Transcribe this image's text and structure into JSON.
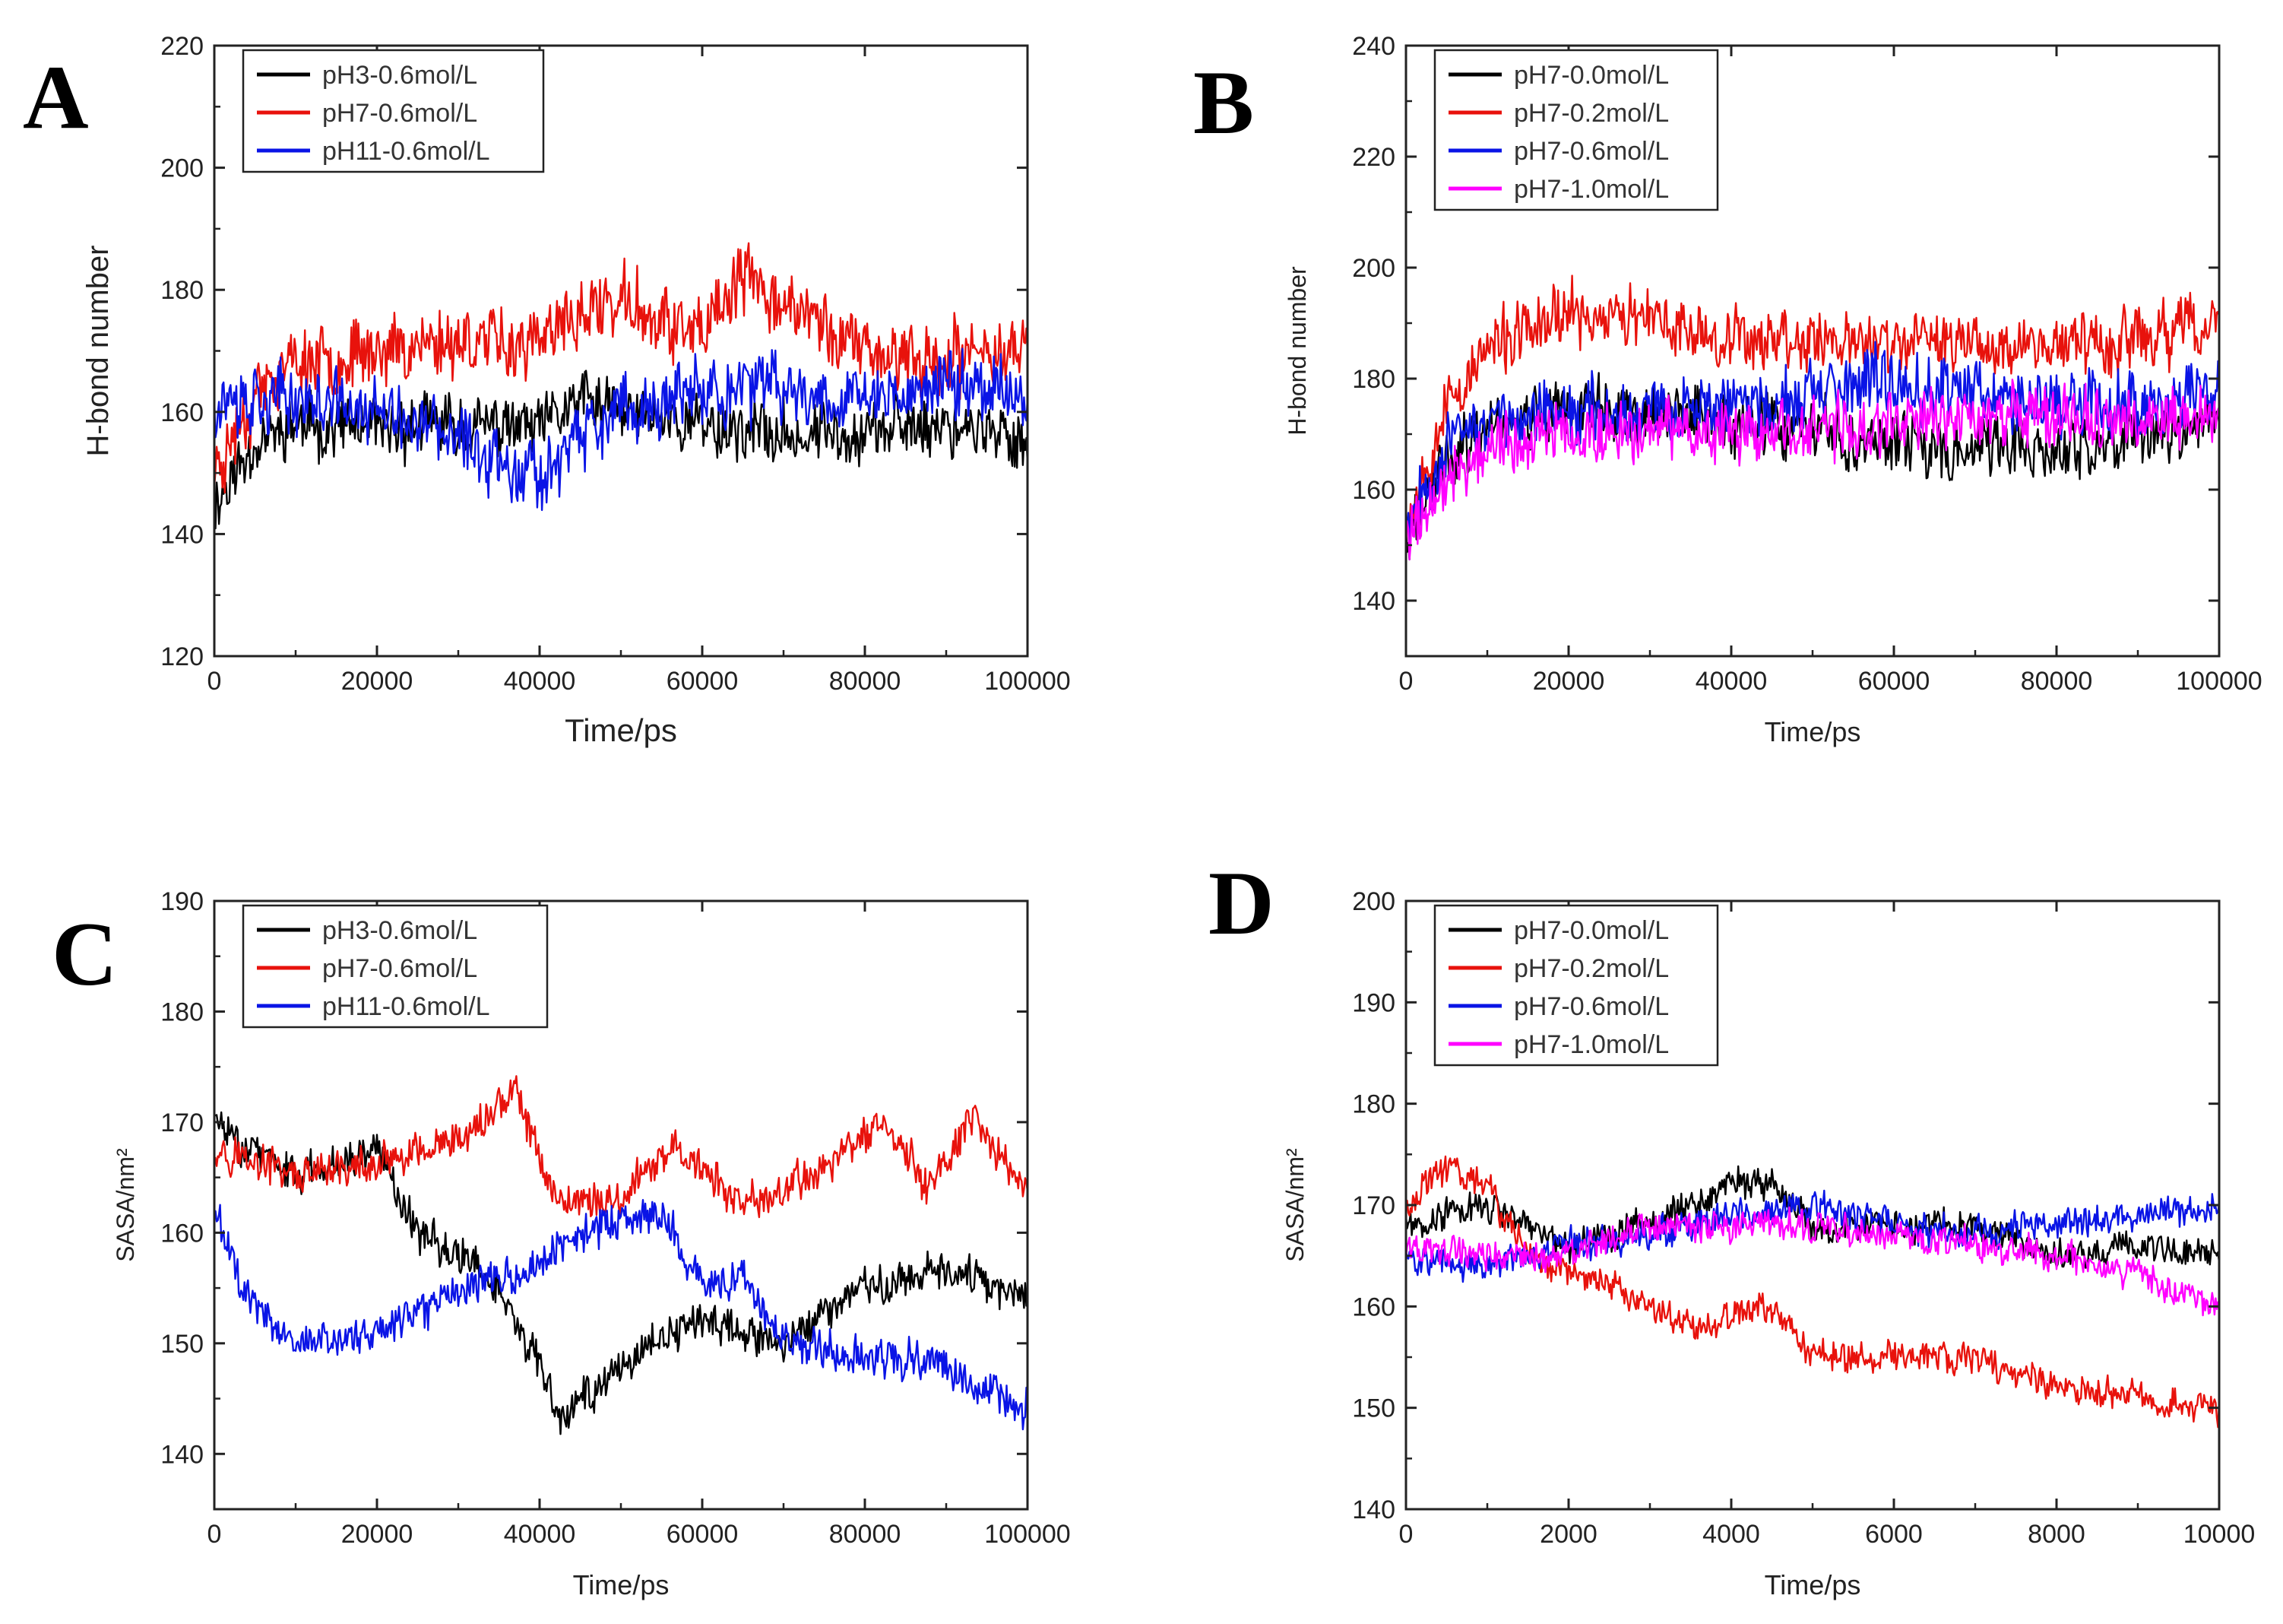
{
  "chart_data": [
    {
      "id": "A",
      "panel_label": "A",
      "type": "line",
      "title": "",
      "xlabel": "Time/ps",
      "ylabel": "H-bond number",
      "xlim": [
        0,
        100000
      ],
      "ylim": [
        120,
        220
      ],
      "xticks": [
        0,
        20000,
        40000,
        60000,
        80000,
        100000
      ],
      "xtick_labels": [
        "0",
        "20000",
        "40000",
        "60000",
        "80000",
        "100000"
      ],
      "yticks": [
        120,
        140,
        160,
        180,
        200,
        220
      ],
      "ytick_labels": [
        "120",
        "140",
        "160",
        "180",
        "200",
        "220"
      ],
      "legend_position": "top-left",
      "series": [
        {
          "name": "pH3-0.6mol/L",
          "color": "#000000",
          "noise": 7,
          "seed": 11,
          "x": [
            0,
            5000,
            10000,
            20000,
            30000,
            40000,
            45000,
            50000,
            60000,
            70000,
            80000,
            90000,
            100000
          ],
          "values": [
            145,
            155,
            158,
            157,
            158,
            157,
            162,
            160,
            158,
            156,
            157,
            158,
            155
          ]
        },
        {
          "name": "pH7-0.6mol/L",
          "color": "#e8120c",
          "noise": 8,
          "seed": 23,
          "x": [
            0,
            5000,
            10000,
            20000,
            30000,
            40000,
            45000,
            50000,
            60000,
            65000,
            70000,
            80000,
            90000,
            100000
          ],
          "values": [
            150,
            163,
            168,
            170,
            172,
            171,
            176,
            178,
            172,
            182,
            178,
            170,
            168,
            172
          ]
        },
        {
          "name": "pH11-0.6mol/L",
          "color": "#0a14e6",
          "noise": 8,
          "seed": 37,
          "x": [
            0,
            10000,
            20000,
            30000,
            40000,
            45000,
            50000,
            60000,
            70000,
            80000,
            90000,
            100000
          ],
          "values": [
            162,
            162,
            160,
            155,
            150,
            155,
            160,
            163,
            164,
            162,
            165,
            163
          ]
        }
      ]
    },
    {
      "id": "B",
      "panel_label": "B",
      "type": "line",
      "title": "",
      "xlabel": "Time/ps",
      "ylabel": "H-bond number",
      "xlim": [
        0,
        100000
      ],
      "ylim": [
        130,
        240
      ],
      "xticks": [
        0,
        20000,
        40000,
        60000,
        80000,
        100000
      ],
      "xtick_labels": [
        "0",
        "20000",
        "40000",
        "60000",
        "80000",
        "100000"
      ],
      "yticks": [
        140,
        160,
        180,
        200,
        220,
        240
      ],
      "ytick_labels": [
        "140",
        "160",
        "180",
        "200",
        "220",
        "240"
      ],
      "legend_position": "top-left",
      "series": [
        {
          "name": "pH7-0.0mol/L",
          "color": "#000000",
          "noise": 8,
          "seed": 41,
          "x": [
            0,
            5000,
            10000,
            20000,
            30000,
            40000,
            50000,
            60000,
            70000,
            80000,
            90000,
            100000
          ],
          "values": [
            150,
            165,
            172,
            175,
            174,
            172,
            170,
            168,
            168,
            166,
            170,
            172
          ]
        },
        {
          "name": "pH7-0.2mol/L",
          "color": "#e8120c",
          "noise": 8,
          "seed": 53,
          "x": [
            0,
            5000,
            10000,
            20000,
            30000,
            40000,
            50000,
            60000,
            70000,
            80000,
            90000,
            100000
          ],
          "values": [
            155,
            175,
            185,
            192,
            190,
            188,
            187,
            186,
            187,
            186,
            187,
            190
          ]
        },
        {
          "name": "pH7-0.6mol/L",
          "color": "#0a14e6",
          "noise": 8,
          "seed": 67,
          "x": [
            0,
            5000,
            10000,
            20000,
            30000,
            40000,
            50000,
            60000,
            70000,
            80000,
            90000,
            100000
          ],
          "values": [
            155,
            168,
            172,
            174,
            175,
            175,
            176,
            180,
            178,
            176,
            176,
            178
          ]
        },
        {
          "name": "pH7-1.0mol/L",
          "color": "#ff00ff",
          "noise": 8,
          "seed": 79,
          "x": [
            0,
            5000,
            10000,
            20000,
            30000,
            40000,
            50000,
            60000,
            70000,
            80000,
            90000,
            100000
          ],
          "values": [
            152,
            162,
            168,
            170,
            171,
            170,
            170,
            172,
            173,
            173,
            172,
            173
          ]
        }
      ]
    },
    {
      "id": "C",
      "panel_label": "C",
      "type": "line",
      "title": "",
      "xlabel": "Time/ps",
      "ylabel": "SASA/nm²",
      "xlim": [
        0,
        100000
      ],
      "ylim": [
        135,
        190
      ],
      "xticks": [
        0,
        20000,
        40000,
        60000,
        80000,
        100000
      ],
      "xtick_labels": [
        "0",
        "20000",
        "40000",
        "60000",
        "80000",
        "100000"
      ],
      "yticks": [
        140,
        150,
        160,
        170,
        180,
        190
      ],
      "ytick_labels": [
        "140",
        "150",
        "160",
        "170",
        "180",
        "190"
      ],
      "legend_position": "top-left",
      "series": [
        {
          "name": "pH3-0.6mol/L",
          "color": "#000000",
          "noise": 2.5,
          "seed": 83,
          "x": [
            0,
            10000,
            20000,
            25000,
            30000,
            35000,
            40000,
            42000,
            50000,
            60000,
            70000,
            80000,
            90000,
            100000
          ],
          "values": [
            170,
            165,
            168,
            160,
            158,
            155,
            148,
            143,
            148,
            152,
            150,
            155,
            157,
            154
          ]
        },
        {
          "name": "pH7-0.6mol/L",
          "color": "#e8120c",
          "noise": 2.5,
          "seed": 97,
          "x": [
            0,
            10000,
            20000,
            30000,
            37000,
            42000,
            50000,
            57000,
            65000,
            75000,
            82000,
            88000,
            93000,
            100000
          ],
          "values": [
            168,
            165,
            166,
            168,
            173,
            163,
            163,
            168,
            162,
            166,
            170,
            164,
            170,
            164
          ]
        },
        {
          "name": "pH11-0.6mol/L",
          "color": "#0a14e6",
          "noise": 2.5,
          "seed": 101,
          "x": [
            0,
            5000,
            10000,
            20000,
            30000,
            40000,
            45000,
            55000,
            60000,
            65000,
            70000,
            80000,
            90000,
            100000
          ],
          "values": [
            162,
            153,
            150,
            151,
            155,
            157,
            160,
            162,
            155,
            156,
            150,
            149,
            148,
            144
          ]
        }
      ]
    },
    {
      "id": "D",
      "panel_label": "D",
      "type": "line",
      "title": "",
      "xlabel": "Time/ps",
      "ylabel": "SASA/nm²",
      "xlim": [
        0,
        10000
      ],
      "ylim": [
        140,
        200
      ],
      "xticks": [
        0,
        2000,
        4000,
        6000,
        8000,
        10000
      ],
      "xtick_labels": [
        "0",
        "2000",
        "4000",
        "6000",
        "8000",
        "10000"
      ],
      "yticks": [
        140,
        150,
        160,
        170,
        180,
        190,
        200
      ],
      "ytick_labels": [
        "140",
        "150",
        "160",
        "170",
        "180",
        "190",
        "200"
      ],
      "legend_position": "top-left",
      "series": [
        {
          "name": "pH7-0.0mol/L",
          "color": "#000000",
          "noise": 2.2,
          "seed": 107,
          "x": [
            0,
            1000,
            2000,
            3000,
            4000,
            4500,
            5000,
            6000,
            7000,
            8000,
            9000,
            10000
          ],
          "values": [
            168,
            170,
            166,
            168,
            172,
            172,
            168,
            168,
            168,
            165,
            166,
            165
          ]
        },
        {
          "name": "pH7-0.2mol/L",
          "color": "#e8120c",
          "noise": 2.2,
          "seed": 113,
          "x": [
            0,
            500,
            1000,
            1500,
            2500,
            3500,
            4500,
            5000,
            6000,
            7000,
            8000,
            9000,
            10000
          ],
          "values": [
            170,
            174,
            172,
            165,
            162,
            158,
            160,
            155,
            155,
            155,
            152,
            151,
            150
          ]
        },
        {
          "name": "pH7-0.6mol/L",
          "color": "#0a14e6",
          "noise": 2.2,
          "seed": 127,
          "x": [
            0,
            1000,
            2000,
            3000,
            4000,
            5000,
            6000,
            7000,
            8000,
            9000,
            10000
          ],
          "values": [
            165,
            164,
            166,
            167,
            169,
            170,
            168,
            167,
            168,
            169,
            170
          ]
        },
        {
          "name": "pH7-1.0mol/L",
          "color": "#ff00ff",
          "noise": 2.2,
          "seed": 131,
          "x": [
            0,
            1000,
            2000,
            3000,
            4000,
            5000,
            6000,
            7000,
            8000,
            9000,
            10000
          ],
          "values": [
            166,
            165,
            165,
            168,
            168,
            168,
            167,
            166,
            165,
            163,
            160
          ]
        }
      ]
    }
  ]
}
